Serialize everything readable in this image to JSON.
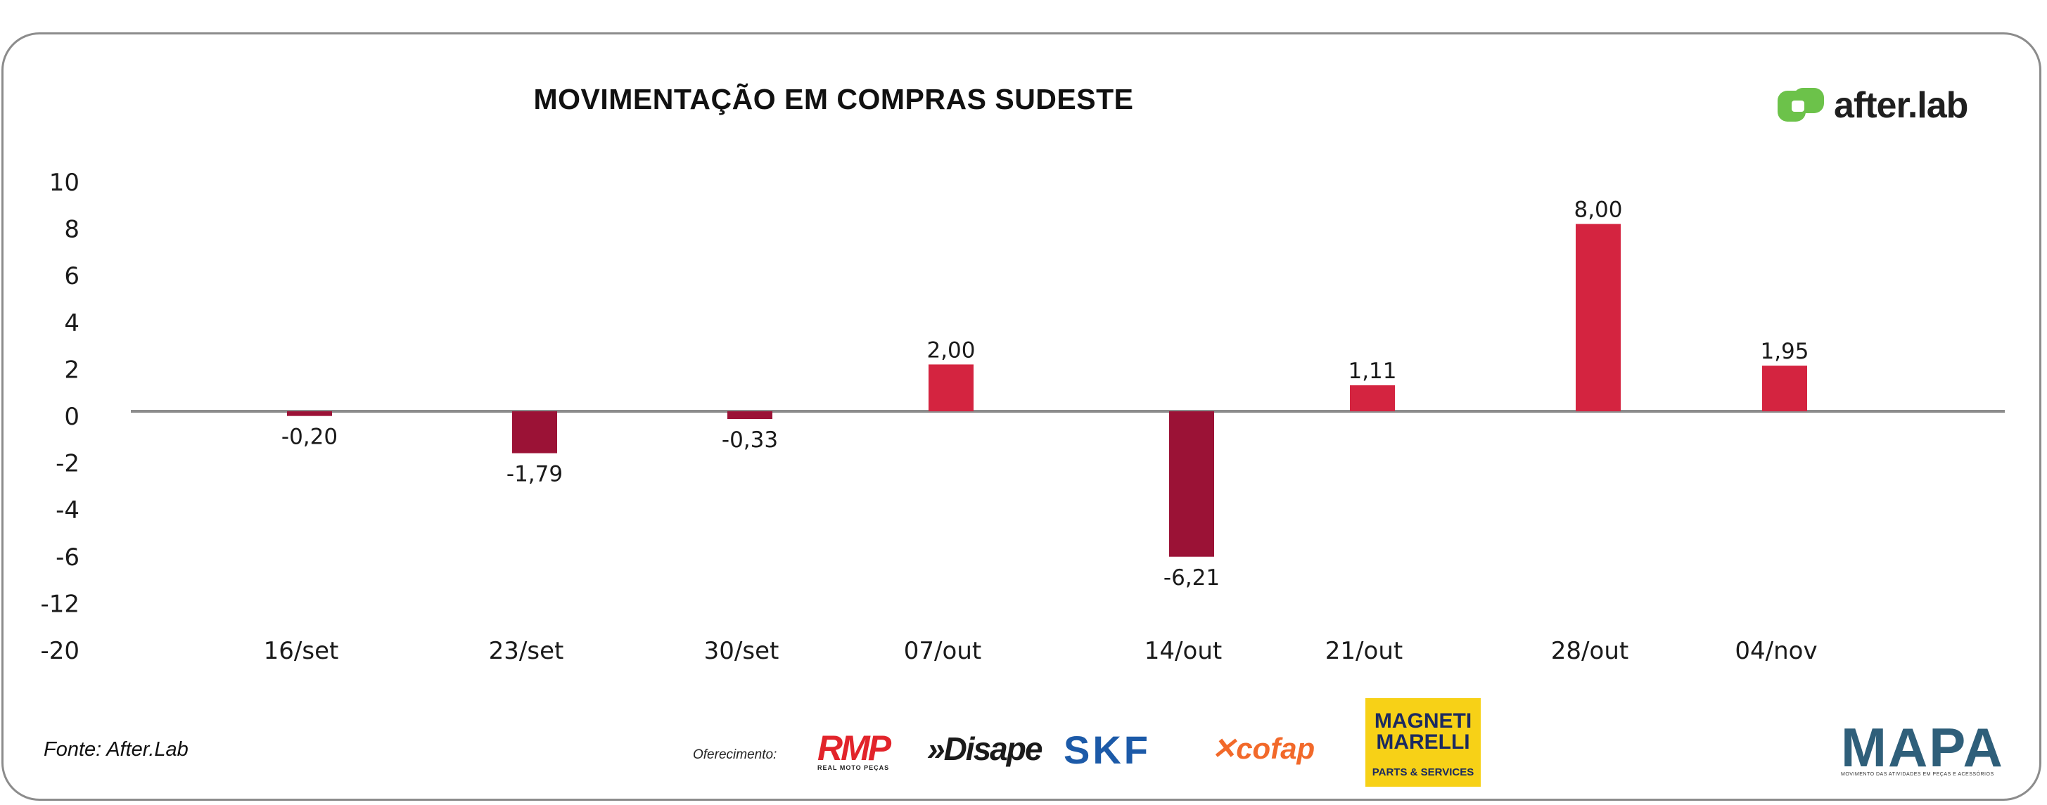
{
  "title": "MOVIMENTAÇÃO EM COMPRAS SUDESTE",
  "brand": {
    "name": "after.lab",
    "accent": "#6cc24a"
  },
  "source": "Fonte: After.Lab",
  "sponsors": {
    "label": "Oferecimento:",
    "rmp": "RMP",
    "rmp_sub": "REAL MOTO PEÇAS",
    "disape": "»Disape",
    "skf": "SKF",
    "cofap": "cofap",
    "magneti_top": "MAGNETI MARELLI",
    "magneti_bottom": "PARTS & SERVICES"
  },
  "mapa": {
    "name": "MAPA",
    "tagline": "MOVIMENTO DAS ATIVIDADES EM PEÇAS E ACESSÓRIOS"
  },
  "chart_data": {
    "type": "bar",
    "categories": [
      "16/set",
      "23/set",
      "30/set",
      "07/out",
      "14/out",
      "21/out",
      "28/out",
      "04/nov"
    ],
    "values": [
      -0.2,
      -1.79,
      -0.33,
      2.0,
      -6.21,
      1.11,
      8.0,
      1.95
    ],
    "data_labels": [
      "-0,20",
      "-1,79",
      "-0,33",
      "2,00",
      "-6,21",
      "1,11",
      "8,00",
      "1,95"
    ],
    "y_tick_labels": [
      "10",
      "8",
      "6",
      "4",
      "2",
      "0",
      "-2",
      "-4",
      "-6",
      "-12",
      "-20"
    ],
    "colors": {
      "positive": "#d42440",
      "negative": "#9b1236",
      "zero_line": "#8c8c8c"
    },
    "grid": false,
    "legend": "none"
  }
}
